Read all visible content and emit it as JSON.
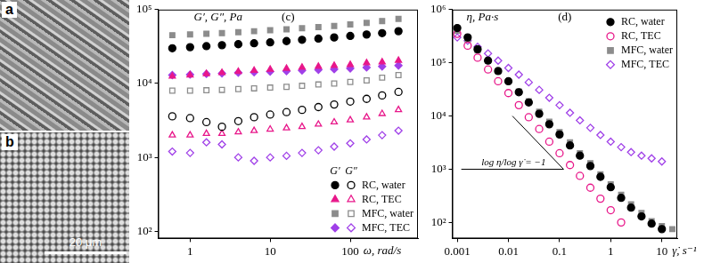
{
  "panels": [
    {
      "label": "a"
    },
    {
      "label": "b",
      "scale_bar": "20 μm"
    }
  ],
  "chart_data": [
    {
      "type": "scatter",
      "title": "(c)",
      "x_label": "ω, rad/s",
      "y_label": "G′, G″, Pa",
      "log": true,
      "grid": false,
      "legend": "lower right",
      "moduli": [
        "G′",
        "G″"
      ],
      "xlim": [
        0.4,
        700
      ],
      "xticks": [
        1,
        10,
        100
      ],
      "ylim": [
        80,
        100000
      ],
      "yticks": [
        {
          "value": 100,
          "label": "10²"
        },
        {
          "value": 1000,
          "label": "10³"
        },
        {
          "value": 10000,
          "label": "10⁴"
        },
        {
          "value": 100000,
          "label": "10⁵"
        }
      ],
      "x": [
        0.6,
        1,
        1.6,
        2.5,
        4,
        6.3,
        10,
        16,
        25,
        40,
        63,
        100,
        160,
        250,
        400
      ],
      "series": [
        {
          "name": "RC, water",
          "color": "#000000",
          "marker": "circle",
          "values": [
            [
              30000,
              31000,
              32000,
              33000,
              34000,
              35000,
              36000,
              37500,
              39000,
              40500,
              42000,
              44000,
              46000,
              48000,
              51000
            ],
            [
              3600,
              3400,
              3000,
              2600,
              3100,
              3500,
              3800,
              4100,
              4400,
              4800,
              5200,
              5700,
              6200,
              6900,
              7700
            ]
          ]
        },
        {
          "name": "RC, TEC",
          "color": "#e8178a",
          "marker": "triangle",
          "values": [
            [
              12500,
              13000,
              13500,
              14000,
              14500,
              15000,
              15500,
              16000,
              16500,
              17000,
              17500,
              18000,
              19000,
              19500,
              20500
            ],
            [
              2000,
              2000,
              2100,
              2100,
              2200,
              2300,
              2400,
              2500,
              2600,
              2800,
              3000,
              3200,
              3500,
              3900,
              4400
            ]
          ]
        },
        {
          "name": "MFC, water",
          "color": "#8c8c8c",
          "marker": "square",
          "values": [
            [
              45000,
              46000,
              47000,
              48000,
              49500,
              51000,
              52500,
              54000,
              56000,
              58000,
              60000,
              63000,
              66000,
              70000,
              75000
            ],
            [
              8000,
              8000,
              8100,
              8200,
              8400,
              8600,
              8800,
              9000,
              9300,
              9700,
              10000,
              10500,
              11000,
              12000,
              13000
            ]
          ]
        },
        {
          "name": "MFC, TEC",
          "color": "#a040e8",
          "marker": "diamond",
          "values": [
            [
              13000,
              13200,
              13500,
              13700,
              14000,
              14200,
              14500,
              14700,
              15000,
              15300,
              15600,
              16000,
              16500,
              17000,
              17500
            ],
            [
              1200,
              1150,
              1600,
              1500,
              1000,
              900,
              1000,
              1050,
              1150,
              1250,
              1400,
              1550,
              1750,
              2000,
              2300
            ]
          ]
        }
      ]
    },
    {
      "type": "scatter",
      "title": "(d)",
      "x_label": "γ̇, s⁻¹",
      "y_label": "η, Pa·s",
      "log": true,
      "grid": false,
      "legend": "upper right",
      "xlim": [
        0.0008,
        20
      ],
      "xticks": [
        0.001,
        0.01,
        0.1,
        1,
        10
      ],
      "ylim": [
        50,
        1000000
      ],
      "yticks": [
        {
          "value": 100,
          "label": "10²"
        },
        {
          "value": 1000,
          "label": "10³"
        },
        {
          "value": 10000,
          "label": "10⁴"
        },
        {
          "value": 100000,
          "label": "10⁵"
        },
        {
          "value": 1000000,
          "label": "10⁶"
        }
      ],
      "series": [
        {
          "name": "RC, water",
          "color": "#000000",
          "marker": "circle",
          "x": [
            0.001,
            0.0016,
            0.0025,
            0.004,
            0.0063,
            0.01,
            0.016,
            0.025,
            0.04,
            0.063,
            0.1,
            0.16,
            0.25,
            0.4,
            0.63,
            1,
            1.6,
            2.5,
            4,
            6.3,
            10
          ],
          "values": [
            450000,
            300000,
            180000,
            110000,
            70000,
            45000,
            28000,
            18000,
            11000,
            7000,
            4500,
            2800,
            1800,
            1150,
            720,
            460,
            290,
            190,
            130,
            95,
            75
          ]
        },
        {
          "name": "RC, TEC",
          "color": "#e8178a",
          "marker": "open_circle",
          "x": [
            0.001,
            0.0016,
            0.0025,
            0.004,
            0.0063,
            0.01,
            0.016,
            0.025,
            0.04,
            0.063,
            0.1,
            0.16,
            0.25,
            0.4,
            0.63,
            1,
            1.6
          ],
          "values": [
            350000,
            210000,
            125000,
            75000,
            45000,
            27000,
            16000,
            9500,
            5700,
            3300,
            2000,
            1200,
            750,
            450,
            280,
            170,
            100
          ]
        },
        {
          "name": "MFC, water",
          "color": "#8c8c8c",
          "marker": "square",
          "x": [
            0.001,
            0.0016,
            0.0025,
            0.004,
            0.0063,
            0.01,
            0.016,
            0.025,
            0.04,
            0.063,
            0.1,
            0.16,
            0.25,
            0.4,
            0.63,
            1,
            1.6,
            2.5,
            4,
            6.3,
            10,
            16
          ],
          "values": [
            400000,
            270000,
            170000,
            110000,
            70000,
            45000,
            29000,
            19000,
            12000,
            7800,
            5000,
            3200,
            2000,
            1300,
            800,
            520,
            330,
            220,
            150,
            105,
            85,
            75
          ]
        },
        {
          "name": "MFC, TEC",
          "color": "#a040e8",
          "marker": "open_diamond",
          "x": [
            0.001,
            0.0016,
            0.0025,
            0.004,
            0.0063,
            0.01,
            0.016,
            0.025,
            0.04,
            0.063,
            0.1,
            0.16,
            0.25,
            0.4,
            0.63,
            1,
            1.6,
            2.5,
            4,
            6.3,
            10
          ],
          "values": [
            300000,
            260000,
            200000,
            150000,
            110000,
            80000,
            60000,
            43000,
            31000,
            22000,
            16000,
            11500,
            8300,
            6000,
            4400,
            3300,
            2600,
            2100,
            1800,
            1600,
            1400
          ]
        }
      ],
      "annotations": [
        {
          "text": "log η/log γ̇ = −1",
          "lines": [
            {
              "x": [
                0.012,
                0.12
              ],
              "y": [
                10000,
                1000
              ]
            },
            {
              "x": [
                0.0012,
                0.12
              ],
              "y": [
                1000,
                1000
              ]
            }
          ]
        }
      ]
    }
  ]
}
